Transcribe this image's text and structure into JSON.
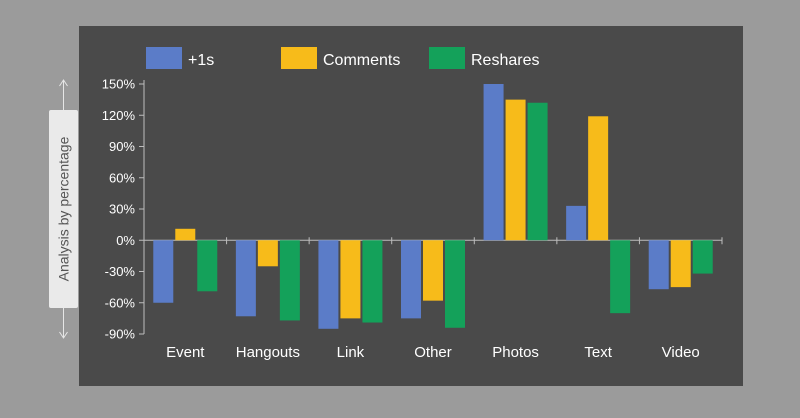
{
  "chart_data": {
    "type": "bar",
    "title": "",
    "xlabel": "",
    "ylabel": "Analysis by percentage",
    "ylim": [
      -90,
      150
    ],
    "yticks": [
      150,
      120,
      90,
      60,
      30,
      0,
      -30,
      -60,
      -90
    ],
    "ytick_labels": [
      "150%",
      "120%",
      "90%",
      "60%",
      "30%",
      "0%",
      "-30%",
      "-60%",
      "-90%"
    ],
    "categories": [
      "Event",
      "Hangouts",
      "Link",
      "Other",
      "Photos",
      "Text",
      "Video"
    ],
    "series": [
      {
        "name": "+1s",
        "color": "#5b7cc8",
        "values": [
          -60,
          -73,
          -85,
          -75,
          150,
          33,
          -47
        ]
      },
      {
        "name": "Comments",
        "color": "#f7bb1a",
        "values": [
          11,
          -25,
          -75,
          -58,
          135,
          119,
          -45
        ]
      },
      {
        "name": "Reshares",
        "color": "#14a15a",
        "values": [
          -49,
          -77,
          -79,
          -84,
          132,
          -70,
          -32
        ]
      }
    ],
    "legend_position": "top-left",
    "grid": false
  }
}
